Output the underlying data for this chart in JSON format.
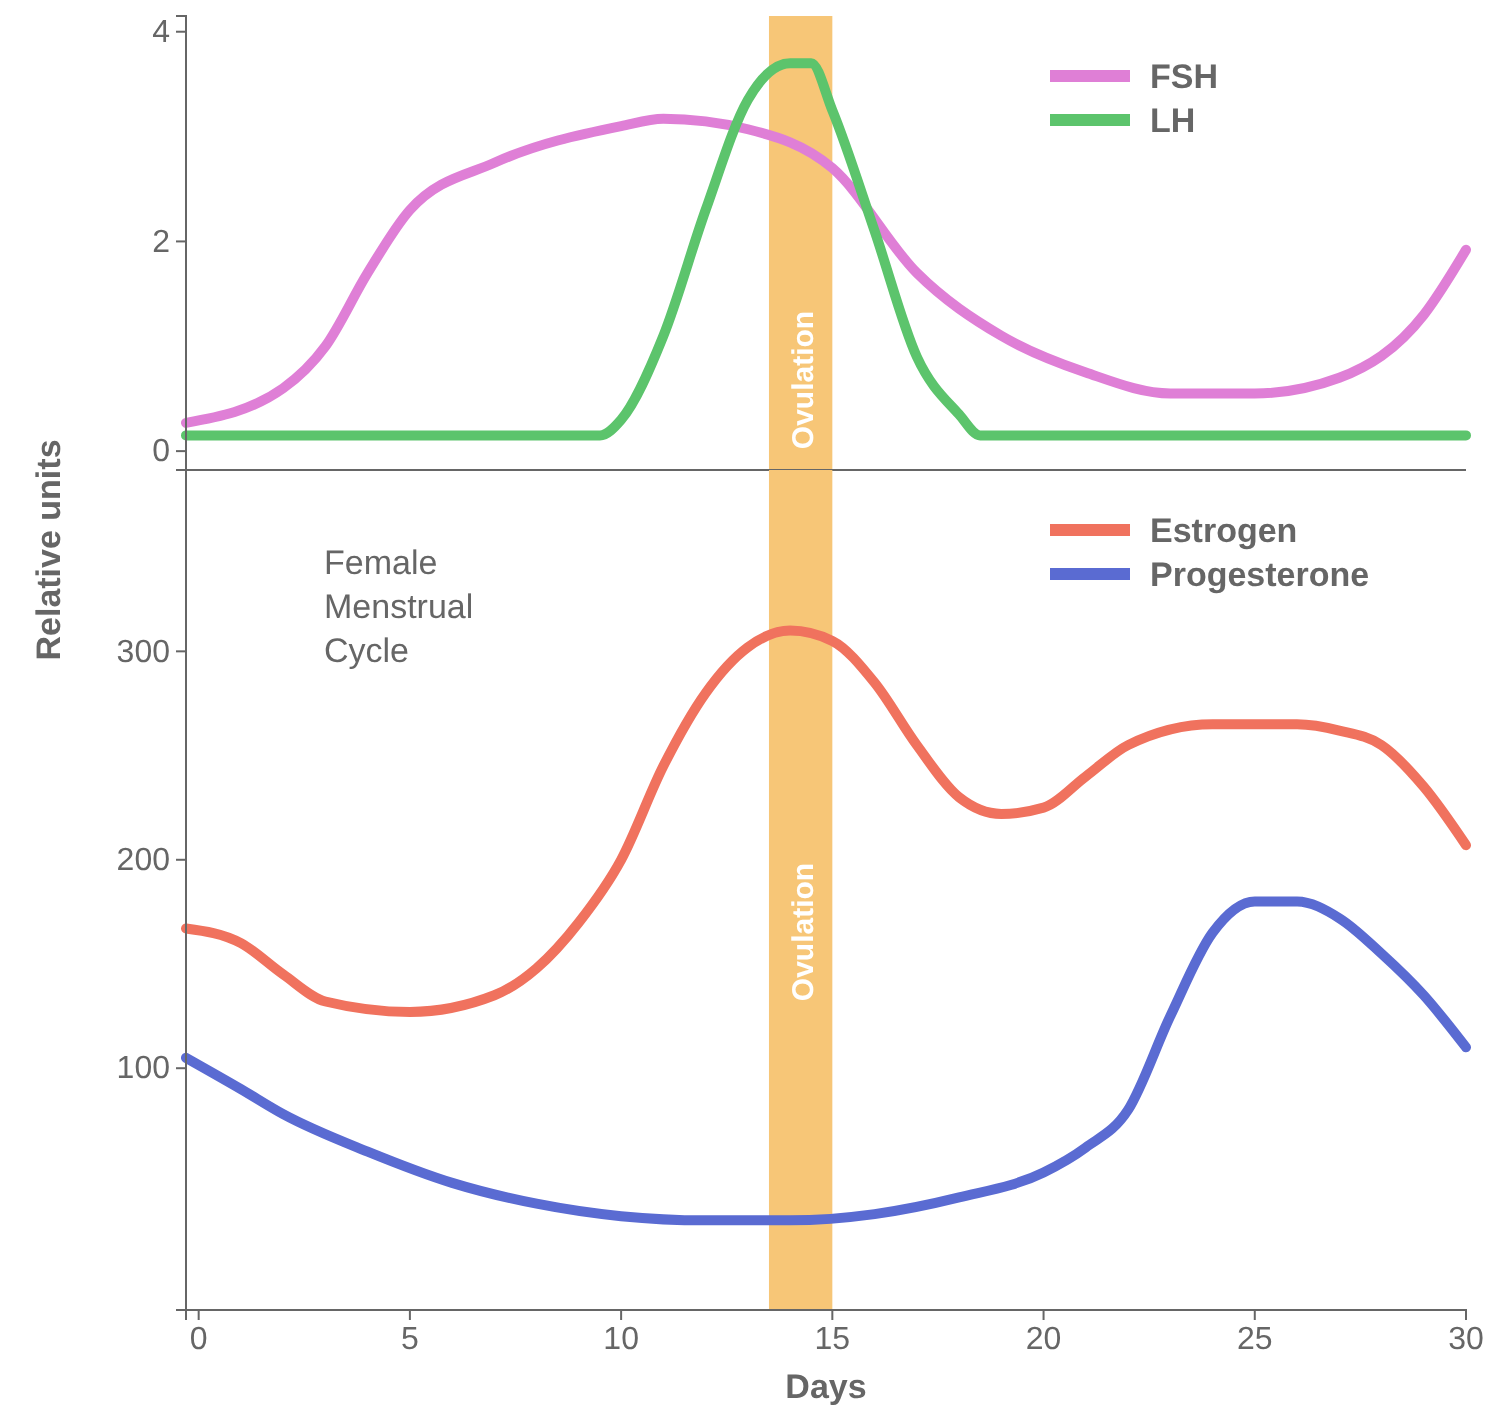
{
  "chart_data": [
    {
      "type": "line",
      "xlim": [
        -0.3,
        30
      ],
      "ylim": [
        -0.18,
        4.15
      ],
      "yticks": [
        0,
        2,
        4
      ],
      "tick_labels": "y",
      "legend": "top right",
      "bands": [
        {
          "axis": "x",
          "from": 13.5,
          "to": 15,
          "label": "Ovulation",
          "color": "#f7c677"
        }
      ],
      "series": [
        {
          "name": "FSH",
          "color": "#df7fd6",
          "x": [
            -0.3,
            2,
            3,
            4,
            5,
            7,
            10,
            11,
            13,
            15,
            17,
            19,
            21,
            23,
            25,
            27,
            29,
            30
          ],
          "values": [
            0.27,
            0.6,
            1.0,
            1.7,
            2.3,
            2.75,
            3.1,
            3.17,
            3.07,
            2.7,
            1.7,
            1.1,
            0.75,
            0.55,
            0.55,
            0.7,
            1.3,
            1.92
          ]
        },
        {
          "name": "LH",
          "color": "#5cc46c",
          "x": [
            -0.3,
            5,
            9.5,
            10,
            11,
            12,
            13,
            14,
            14.5,
            15,
            16,
            17,
            18,
            18.5,
            25,
            30
          ],
          "values": [
            0.15,
            0.15,
            0.15,
            0.3,
            1.1,
            2.3,
            3.35,
            3.7,
            3.7,
            3.25,
            2.1,
            0.9,
            0.35,
            0.15,
            0.15,
            0.15
          ]
        }
      ]
    },
    {
      "type": "line",
      "xlim": [
        -0.3,
        30
      ],
      "xticks": [
        0,
        5,
        10,
        15,
        20,
        25,
        30
      ],
      "ylim": [
        -16,
        387
      ],
      "yticks": [
        100,
        200,
        300
      ],
      "xlabel": "Days",
      "ylabel": "Relative units",
      "legend": "top right",
      "annotations": [
        "Female Menstrual Cycle"
      ],
      "bands": [
        {
          "axis": "x",
          "from": 13.5,
          "to": 15,
          "label": "Ovulation",
          "color": "#f7c677"
        }
      ],
      "series": [
        {
          "name": "Estrogen",
          "color": "#f0725e",
          "x": [
            -0.3,
            1,
            2,
            3,
            5,
            7,
            8,
            9,
            10,
            11,
            12,
            13,
            14,
            15,
            16,
            17,
            18,
            19,
            20,
            21,
            22,
            24,
            26,
            27,
            28,
            29,
            30
          ],
          "values": [
            167,
            160,
            145,
            132,
            127,
            135,
            148,
            170,
            200,
            245,
            280,
            302,
            310,
            305,
            285,
            255,
            230,
            222,
            225,
            240,
            255,
            265,
            265,
            262,
            255,
            235,
            207
          ]
        },
        {
          "name": "Progesterone",
          "color": "#5a6bd2",
          "x": [
            -0.3,
            1,
            2,
            4,
            6,
            8,
            10,
            12,
            14,
            16,
            18,
            20,
            21,
            22,
            23,
            24,
            25,
            26,
            27,
            28,
            29,
            30
          ],
          "values": [
            105,
            90,
            78,
            60,
            45,
            35,
            29,
            27,
            27,
            30,
            38,
            50,
            62,
            80,
            125,
            165,
            180,
            180,
            172,
            155,
            135,
            110
          ]
        }
      ]
    }
  ]
}
